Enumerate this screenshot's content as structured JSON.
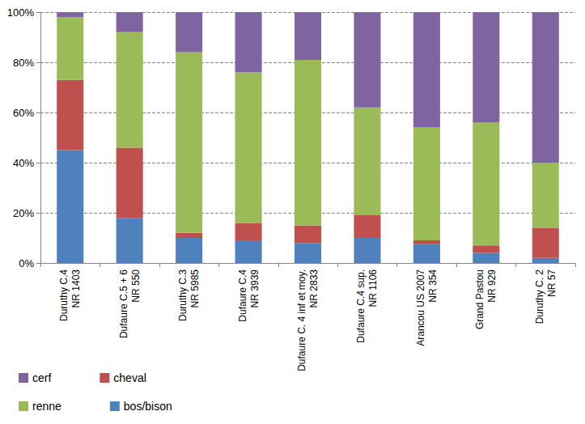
{
  "chart_data": {
    "type": "bar",
    "stacked": true,
    "grid": true,
    "legend": "bottom-left",
    "categories": [
      "Duruthy C.4\nNR 1403",
      "Dufaure C.5 + 6\nNR 550",
      "Duruthy C.3\nNR 5985",
      "Dufaure C.4\nNR 3939",
      "Dufaure C. 4 inf et moy.\nNR 2833",
      "Dufaure C.4 sup.\nNR 1106",
      "Arancou US 2007\nNR 354",
      "Grand Pastou\nNR 929",
      "Duruthy C. 2\nNR 57"
    ],
    "series": [
      {
        "name": "bos/bison",
        "color": "#4f81bd",
        "values": [
          45,
          18,
          10,
          9,
          8,
          10,
          7.5,
          4,
          2
        ]
      },
      {
        "name": "cheval",
        "color": "#c0504d",
        "values": [
          28,
          28,
          2,
          7,
          7,
          9,
          1.5,
          3,
          12
        ]
      },
      {
        "name": "renne",
        "color": "#9bbb59",
        "values": [
          25,
          46,
          72,
          60,
          66,
          43,
          45,
          49,
          26
        ]
      },
      {
        "name": "cerf",
        "color": "#8064a2",
        "values": [
          2,
          8,
          16,
          24,
          19,
          38,
          46,
          44,
          60
        ]
      }
    ],
    "ylim": [
      0,
      100
    ],
    "yticks": [
      {
        "value": 0,
        "label": "0%"
      },
      {
        "value": 20,
        "label": "20%"
      },
      {
        "value": 40,
        "label": "40%"
      },
      {
        "value": 60,
        "label": "60%"
      },
      {
        "value": 80,
        "label": "80%"
      },
      {
        "value": 100,
        "label": "100%"
      }
    ]
  }
}
